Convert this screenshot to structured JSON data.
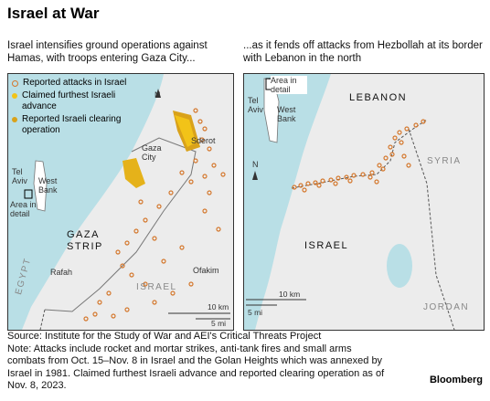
{
  "title": "Israel at War",
  "left": {
    "subtitle": "Israel intensifies ground operations against Hamas, with troops entering Gaza City...",
    "legend": [
      {
        "label": "Reported attacks in Israel",
        "color": "#d4772c",
        "style": "ring"
      },
      {
        "label": "Claimed furthest Israeli advance",
        "color": "#f2c318",
        "style": "fill"
      },
      {
        "label": "Reported Israeli clearing operation",
        "color": "#d9a21a",
        "style": "fill"
      }
    ],
    "labels": {
      "sderot": "Sderot",
      "gaza_city": "Gaza City",
      "tel_aviv": "Tel Aviv",
      "west_bank": "West Bank",
      "area_in_detail": "Area in detail",
      "gaza_strip": "GAZA STRIP",
      "rafah": "Rafah",
      "ofakim": "Ofakim",
      "israel": "ISRAEL",
      "egypt": "EGYPT",
      "north": "N",
      "scale_km": "10 km",
      "scale_mi": "5 mi"
    }
  },
  "right": {
    "subtitle": "...as it fends off attacks from Hezbollah at its border with Lebanon in the north",
    "labels": {
      "area_in_detail": "Area in detail",
      "tel_aviv": "Tel Aviv",
      "west_bank": "West Bank",
      "lebanon": "LEBANON",
      "israel": "ISRAEL",
      "syria": "SYRIA",
      "jordan": "JORDAN",
      "north": "N",
      "scale_km": "10 km",
      "scale_mi": "5 mi"
    }
  },
  "footer": {
    "source": "Source: Institute for the Study of War and AEI's Critical Threats Project",
    "note": "Note: Attacks include rocket and mortar strikes, anti-tank fires and small arms combats from Oct. 15–Nov. 8 in Israel and the Golan Heights which was annexed by Israel in 1981. Claimed furthest Israeli advance and reported clearing operation as of Nov. 8, 2023.",
    "brand": "Bloomberg"
  },
  "colors": {
    "sea": "#b9dfe6",
    "land": "#ececec",
    "attack": "#d4772c",
    "advance": "#f2c318",
    "clearing": "#d9a21a"
  }
}
